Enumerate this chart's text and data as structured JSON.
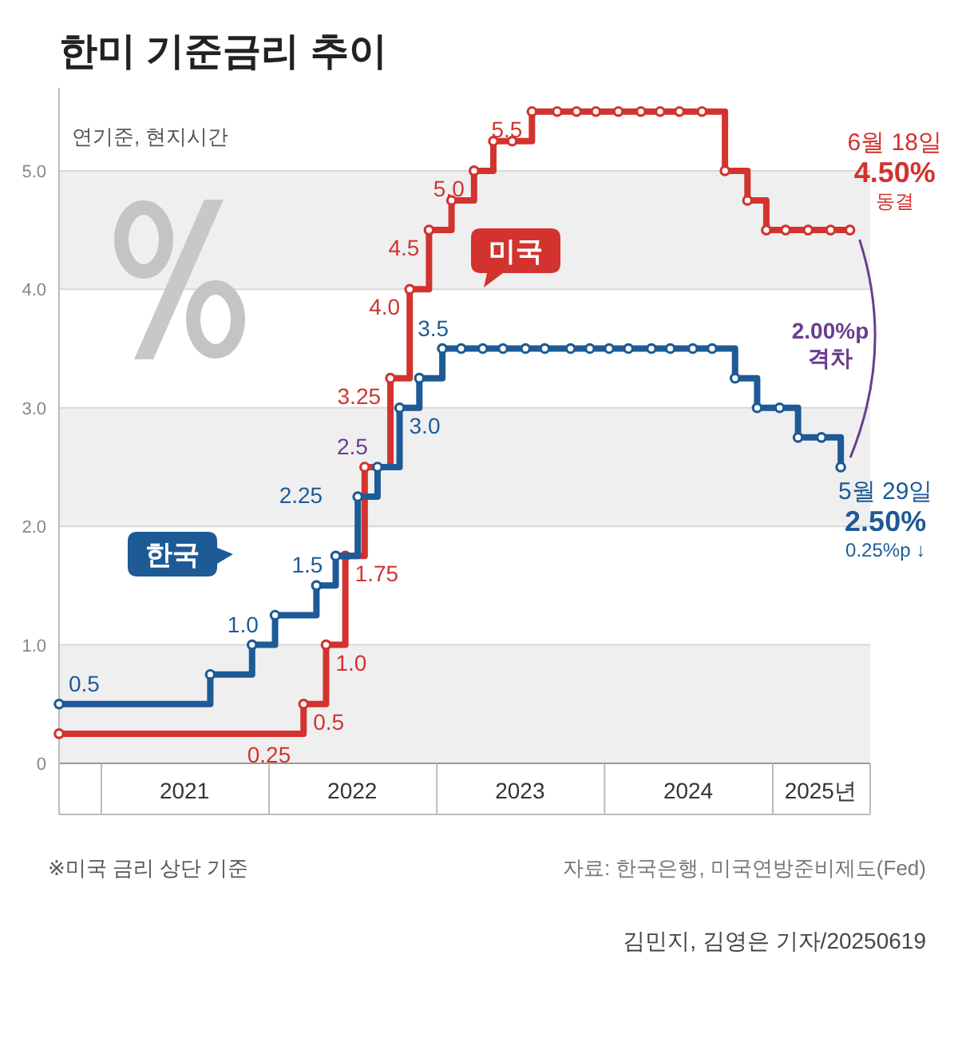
{
  "chart_data": {
    "type": "step",
    "title": "한미 기준금리 추이",
    "xlim": [
      "2020-10-01",
      "2025-08-01"
    ],
    "xticks": [
      {
        "value": "2021-07-01",
        "label": "2021"
      },
      {
        "value": "2022-07-01",
        "label": "2022"
      },
      {
        "value": "2023-07-01",
        "label": "2023"
      },
      {
        "value": "2024-07-01",
        "label": "2024"
      },
      {
        "value": "2025-04-15",
        "label": "2025년"
      }
    ],
    "ylim": [
      0,
      5.7
    ],
    "yticks": [
      0,
      {
        "value": 1,
        "label": "1.0"
      },
      {
        "value": 2,
        "label": "2.0"
      },
      {
        "value": 3,
        "label": "3.0"
      },
      {
        "value": 4,
        "label": "4.0"
      },
      {
        "value": 5,
        "label": "5.0"
      }
    ],
    "grid": "y",
    "marker": "circle",
    "line_style": "solid",
    "series": [
      {
        "name": "미국",
        "color": "#d2332f",
        "x": [
          "2020-10-01",
          "2022-03-17",
          "2022-05-05",
          "2022-06-16",
          "2022-07-28",
          "2022-09-22",
          "2022-11-03",
          "2022-12-15",
          "2023-02-02",
          "2023-03-23",
          "2023-05-04",
          "2023-06-14",
          "2023-07-27",
          "2023-09-20",
          "2023-11-01",
          "2023-12-13",
          "2024-01-31",
          "2024-03-20",
          "2024-05-01",
          "2024-06-12",
          "2024-07-31",
          "2024-09-19",
          "2024-11-07",
          "2024-12-18",
          "2025-01-29",
          "2025-03-19",
          "2025-05-07",
          "2025-06-18"
        ],
        "values": [
          0.25,
          0.5,
          1.0,
          1.75,
          2.5,
          3.25,
          4.0,
          4.5,
          4.75,
          5.0,
          5.25,
          5.25,
          5.5,
          5.5,
          5.5,
          5.5,
          5.5,
          5.5,
          5.5,
          5.5,
          5.5,
          5.0,
          4.75,
          4.5,
          4.5,
          4.5,
          4.5,
          4.5
        ],
        "value_labels": [
          null,
          "0.5",
          "1.0",
          "1.75",
          null,
          "3.25",
          "4.0",
          "4.5",
          null,
          "5.0",
          null,
          null,
          "5.5",
          null,
          null,
          null,
          null,
          null,
          null,
          null,
          null,
          null,
          null,
          null,
          null,
          null,
          null,
          null
        ]
      },
      {
        "name": "한국",
        "color": "#1d5a96",
        "x": [
          "2020-10-01",
          "2021-08-26",
          "2021-11-25",
          "2022-01-14",
          "2022-04-14",
          "2022-05-26",
          "2022-07-13",
          "2022-08-25",
          "2022-10-12",
          "2022-11-24",
          "2023-01-13",
          "2023-02-23",
          "2023-04-11",
          "2023-05-25",
          "2023-07-13",
          "2023-08-24",
          "2023-10-19",
          "2023-11-30",
          "2024-01-11",
          "2024-02-22",
          "2024-04-12",
          "2024-05-23",
          "2024-07-11",
          "2024-08-22",
          "2024-10-11",
          "2024-11-28",
          "2025-01-16",
          "2025-02-25",
          "2025-04-17",
          "2025-05-29"
        ],
        "values": [
          0.5,
          0.75,
          1.0,
          1.25,
          1.5,
          1.75,
          2.25,
          2.5,
          3.0,
          3.25,
          3.5,
          3.5,
          3.5,
          3.5,
          3.5,
          3.5,
          3.5,
          3.5,
          3.5,
          3.5,
          3.5,
          3.5,
          3.5,
          3.5,
          3.25,
          3.0,
          3.0,
          2.75,
          2.75,
          2.5
        ],
        "value_labels": [
          "0.5",
          null,
          "1.0",
          null,
          "1.5",
          null,
          "2.25",
          null,
          "3.0",
          null,
          "3.5",
          null,
          null,
          null,
          null,
          null,
          null,
          null,
          null,
          null,
          null,
          null,
          null,
          null,
          null,
          null,
          null,
          null,
          null,
          null
        ]
      }
    ],
    "annotations": [
      "연기준, 현지시간",
      "2.00%p 격차",
      "※미국 금리 상단 기준",
      "자료: 한국은행, 미국연방준비제도(Fed)",
      "김민지, 김영은 기자/20250619",
      {
        "text": "0.25",
        "x": "2022-03-17",
        "y": 0.25
      },
      {
        "text": "2.5",
        "x": "2022-08-25",
        "y": 2.5
      },
      "6월 18일",
      "4.50%",
      "동결",
      "5월 29일",
      "2.50%",
      "0.25%p ↓"
    ]
  }
}
